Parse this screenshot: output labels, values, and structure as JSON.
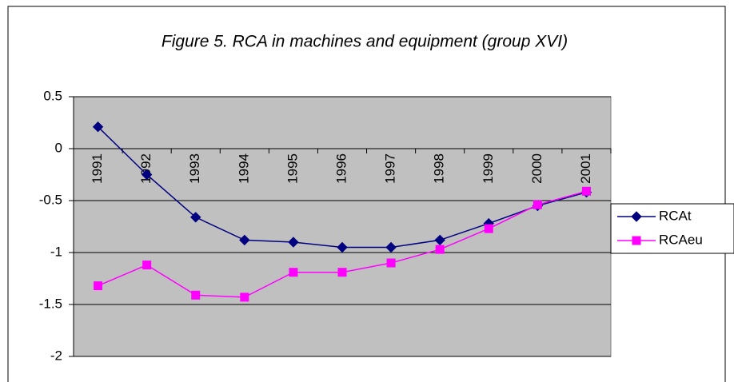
{
  "chart_data": {
    "type": "line",
    "title": "Figure 5. RCA in machines and equipment (group XVI)",
    "categories": [
      "1991",
      "1992",
      "1993",
      "1994",
      "1995",
      "1996",
      "1997",
      "1998",
      "1999",
      "2000",
      "2001"
    ],
    "series": [
      {
        "name": "RCAt",
        "color": "#000080",
        "marker": "diamond",
        "values": [
          0.21,
          -0.25,
          -0.66,
          -0.88,
          -0.9,
          -0.95,
          -0.95,
          -0.88,
          -0.72,
          -0.55,
          -0.42
        ]
      },
      {
        "name": "RCAeu",
        "color": "#ff00ff",
        "marker": "square",
        "values": [
          -1.32,
          -1.12,
          -1.41,
          -1.43,
          -1.19,
          -1.19,
          -1.1,
          -0.97,
          -0.77,
          -0.54,
          -0.41
        ]
      }
    ],
    "ylim": [
      -2,
      0.5
    ],
    "yticks": [
      0.5,
      0,
      -0.5,
      -1,
      -1.5,
      -2
    ],
    "grid": true,
    "legend": "right"
  }
}
